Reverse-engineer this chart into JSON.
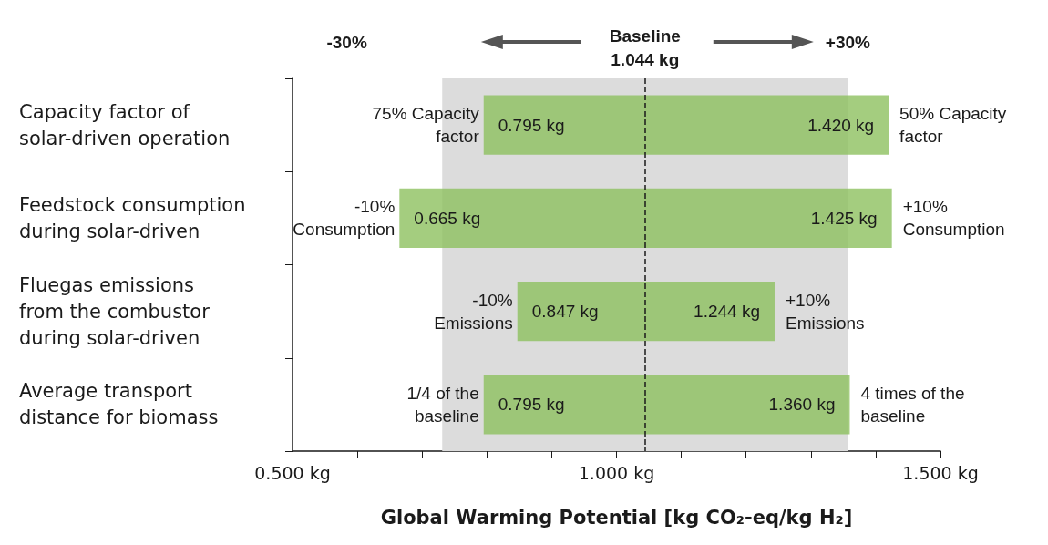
{
  "chart_data": {
    "type": "bar",
    "orientation": "horizontal",
    "categories": [
      "Capacity factor of\nsolar-driven operation",
      "Feedstock consumption\nduring solar-driven",
      "Fluegas emissions\nfrom the combustor\nduring solar-driven",
      "Average transport\ndistance for biomass"
    ],
    "base": [
      0.795,
      0.665,
      0.847,
      0.795
    ],
    "values": [
      0.625,
      0.76,
      0.397,
      0.565
    ],
    "color": "#8dc05f",
    "xlabel": "Global Warming Potential [kg CO₂-eq/kg H₂]",
    "xlim": [
      0.5,
      1.5
    ],
    "xticks": [
      {
        "value": 0.5,
        "label": "0.500 kg"
      },
      {
        "value": 0.6,
        "label": null
      },
      {
        "value": 0.7,
        "label": null
      },
      {
        "value": 0.8,
        "label": null
      },
      {
        "value": 0.9,
        "label": null
      },
      {
        "value": 1.0,
        "label": "1.000 kg"
      },
      {
        "value": 1.1,
        "label": null
      },
      {
        "value": 1.2,
        "label": null
      },
      {
        "value": 1.3,
        "label": null
      },
      {
        "value": 1.4,
        "label": null
      },
      {
        "value": 1.5,
        "label": "1.500 kg"
      }
    ],
    "grid": false,
    "ref_lines": [
      {
        "axis": "x",
        "value": 1.044,
        "label": "Baseline\n1.044 kg",
        "line_style": "dashed",
        "color": "#1a1a1a"
      }
    ],
    "bands": [
      {
        "axis": "x",
        "from": 0.731,
        "to": 1.357,
        "color": "#dcdcdc"
      }
    ],
    "annotations": [
      "-30%",
      "+30%",
      {
        "text": "75% Capacity\nfactor",
        "x": 0.795,
        "y": "Capacity factor of\nsolar-driven operation"
      },
      {
        "text": "0.795 kg",
        "x": 0.795,
        "y": "Capacity factor of\nsolar-driven operation"
      },
      {
        "text": "1.420 kg",
        "x": 1.42,
        "y": "Capacity factor of\nsolar-driven operation"
      },
      {
        "text": "50% Capacity\nfactor",
        "x": 1.42,
        "y": "Capacity factor of\nsolar-driven operation"
      },
      {
        "text": "-10%\nConsumption",
        "x": 0.665,
        "y": "Feedstock consumption\nduring solar-driven"
      },
      {
        "text": "0.665 kg",
        "x": 0.665,
        "y": "Feedstock consumption\nduring solar-driven"
      },
      {
        "text": "1.425 kg",
        "x": 1.425,
        "y": "Feedstock consumption\nduring solar-driven"
      },
      {
        "text": "+10%\nConsumption",
        "x": 1.425,
        "y": "Feedstock consumption\nduring solar-driven"
      },
      {
        "text": "-10%\nEmissions",
        "x": 0.847,
        "y": "Fluegas emissions\nfrom the combustor\nduring solar-driven"
      },
      {
        "text": "0.847 kg",
        "x": 0.847,
        "y": "Fluegas emissions\nfrom the combustor\nduring solar-driven"
      },
      {
        "text": "1.244 kg",
        "x": 1.244,
        "y": "Fluegas emissions\nfrom the combustor\nduring solar-driven"
      },
      {
        "text": "+10%\nEmissions",
        "x": 1.244,
        "y": "Fluegas emissions\nfrom the combustor\nduring solar-driven"
      },
      {
        "text": "1/4 of the\nbaseline",
        "x": 0.795,
        "y": "Average transport\ndistance for biomass"
      },
      {
        "text": "0.795 kg",
        "x": 0.795,
        "y": "Average transport\ndistance for biomass"
      },
      {
        "text": "1.360 kg",
        "x": 1.36,
        "y": "Average transport\ndistance for biomass"
      },
      {
        "text": "4 times of the\nbaseline",
        "x": 1.36,
        "y": "Average transport\ndistance for biomass"
      }
    ]
  }
}
